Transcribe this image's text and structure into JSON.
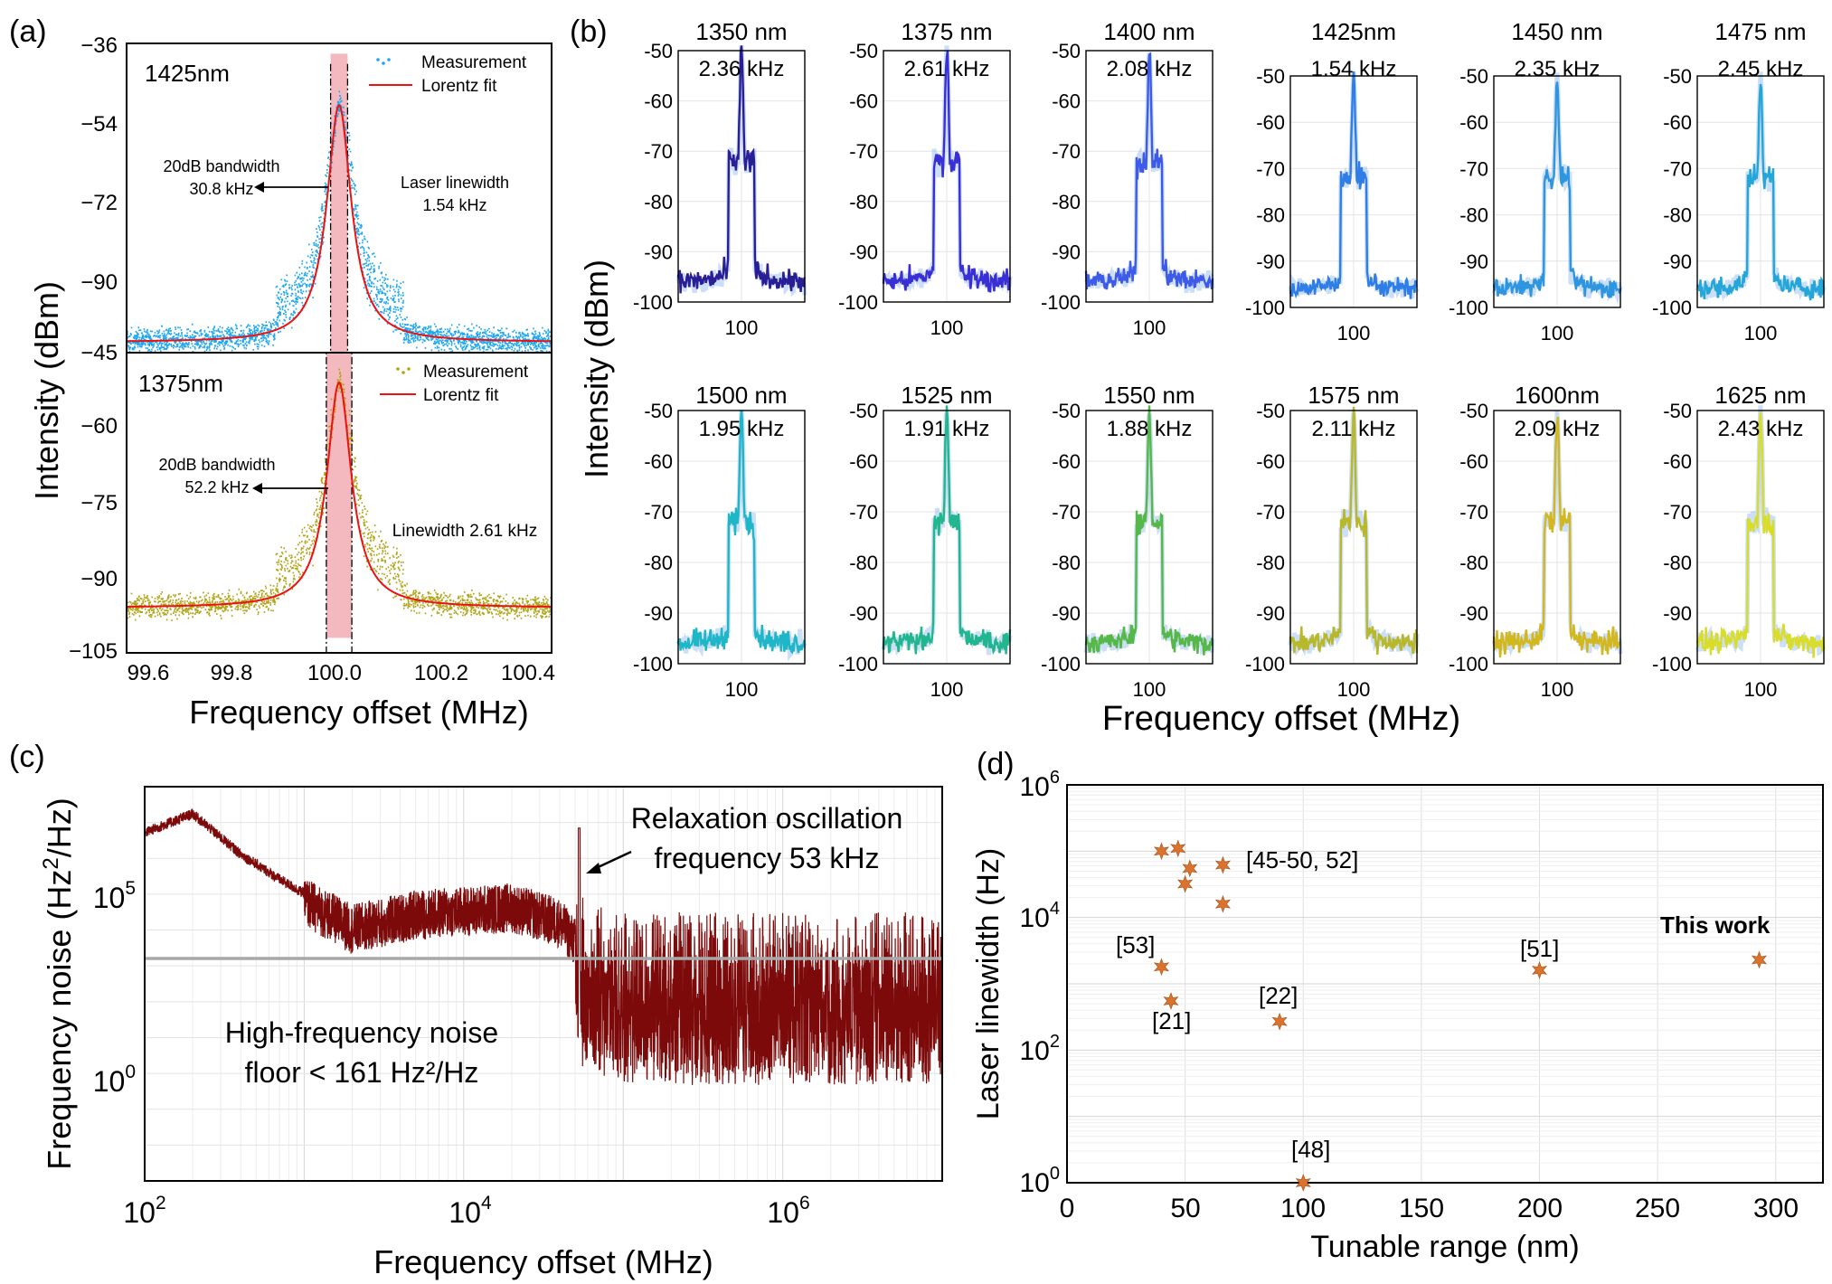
{
  "colors": {
    "meas_blue": "#1ea7f0",
    "meas_olive": "#b0a418",
    "fit_red": "#ee1111",
    "band_pink": "#f4b8bf",
    "noise_red": "#7d0a0a",
    "floor_gray": "#a8a8a8",
    "star_orange": "#d9732e",
    "spectra": [
      "#2a1e96",
      "#3a2fd6",
      "#3d5be8",
      "#2f7ee8",
      "#2e95e0",
      "#25a6d8",
      "#1fb6c8",
      "#22b68e",
      "#55b848",
      "#b8b82a",
      "#d2b81e",
      "#d9dd2a"
    ]
  },
  "panel_a": {
    "tag": "(a)",
    "ylabel": "Intensity (dBm)",
    "xlabel": "Frequency offset (MHz)",
    "xticks": [
      "99.6",
      "99.8",
      "100.0",
      "100.2",
      "100.4"
    ],
    "top": {
      "wavelength": "1425nm",
      "legend_meas": "Measurement",
      "legend_fit": "Lorentz fit",
      "bw_label1": "20dB bandwidth",
      "bw_label2": "30.8 kHz",
      "lw_label1": "Laser linewidth",
      "lw_label2": "1.54 kHz",
      "yticks": [
        "−36",
        "−54",
        "−72",
        "−90"
      ]
    },
    "bottom": {
      "wavelength": "1375nm",
      "legend_meas": "Measurement",
      "legend_fit": "Lorentz fit",
      "bw_label1": "20dB bandwidth",
      "bw_label2": "52.2 kHz",
      "lw_label": "Linewidth 2.61 kHz",
      "yticks": [
        "−45",
        "−60",
        "−75",
        "−90",
        "−105"
      ]
    }
  },
  "panel_b": {
    "tag": "(b)",
    "ylabel": "Intensity (dBm)",
    "xlabel": "Frequency offset (MHz)",
    "xtick": "100",
    "yticks": [
      "-50",
      "-60",
      "-70",
      "-80",
      "-90",
      "-100"
    ],
    "items": [
      {
        "wl": "1350 nm",
        "lw": "2.36 kHz"
      },
      {
        "wl": "1375 nm",
        "lw": "2.61 kHz"
      },
      {
        "wl": "1400 nm",
        "lw": "2.08 kHz"
      },
      {
        "wl": "1425nm",
        "lw": "1.54 kHz"
      },
      {
        "wl": "1450 nm",
        "lw": "2.35 kHz"
      },
      {
        "wl": "1475 nm",
        "lw": "2.45 kHz"
      },
      {
        "wl": "1500 nm",
        "lw": "1.95 kHz"
      },
      {
        "wl": "1525 nm",
        "lw": "1.91 kHz"
      },
      {
        "wl": "1550 nm",
        "lw": "1.88 kHz"
      },
      {
        "wl": "1575 nm",
        "lw": "2.11 kHz"
      },
      {
        "wl": "1600nm",
        "lw": "2.09 kHz"
      },
      {
        "wl": "1625 nm",
        "lw": "2.43 kHz"
      }
    ]
  },
  "panel_c": {
    "tag": "(c)",
    "ylabel_pre": "Frequency noise (Hz",
    "ylabel_sup": "2",
    "ylabel_post": "/Hz)",
    "xlabel": "Frequency offset (MHz)",
    "xticks": [
      {
        "b": "10",
        "e": "2"
      },
      {
        "b": "10",
        "e": "4"
      },
      {
        "b": "10",
        "e": "6"
      }
    ],
    "yticks": [
      {
        "b": "10",
        "e": "5"
      },
      {
        "b": "10",
        "e": "0"
      }
    ],
    "annot1": "Relaxation oscillation",
    "annot2": "frequency 53 kHz",
    "floor1": "High-frequency noise",
    "floor2": "floor  < 161 Hz²/Hz"
  },
  "panel_d": {
    "tag": "(d)",
    "ylabel": "Laser linewidth (Hz)",
    "xlabel": "Tunable range (nm)",
    "xticks": [
      "0",
      "50",
      "100",
      "150",
      "200",
      "250",
      "300"
    ],
    "yticks": [
      {
        "b": "10",
        "e": "0"
      },
      {
        "b": "10",
        "e": "2"
      },
      {
        "b": "10",
        "e": "4"
      },
      {
        "b": "10",
        "e": "6"
      }
    ],
    "labels": [
      "[45-50, 52]",
      "[53]",
      "[21]",
      "[22]",
      "[51]",
      "This work",
      "[48]"
    ]
  },
  "chart_data": [
    {
      "type": "line",
      "panel": "a-top",
      "series": [
        {
          "name": "Measurement"
        },
        {
          "name": "Lorentz fit"
        }
      ],
      "center_mhz": 100.0,
      "peak_dbm": -48,
      "floor_dbm": -94,
      "xlim": [
        99.5,
        100.5
      ],
      "ylim": [
        -96,
        -36
      ],
      "bandwidth_20db_khz": 30.8,
      "linewidth_khz": 1.54
    },
    {
      "type": "line",
      "panel": "a-bottom",
      "series": [
        {
          "name": "Measurement"
        },
        {
          "name": "Lorentz fit"
        }
      ],
      "center_mhz": 100.0,
      "peak_dbm": -51,
      "floor_dbm": -96,
      "xlim": [
        99.5,
        100.5
      ],
      "ylim": [
        -105,
        -45
      ],
      "bandwidth_20db_khz": 52.2,
      "linewidth_khz": 2.61
    },
    {
      "type": "line",
      "panel": "b",
      "x_center_mhz": 100,
      "ylim": [
        -100,
        -50
      ],
      "peak_dbm": -50,
      "floor_dbm": -96,
      "wavelengths_nm": [
        1350,
        1375,
        1400,
        1425,
        1450,
        1475,
        1500,
        1525,
        1550,
        1575,
        1600,
        1625
      ],
      "linewidths_khz": [
        2.36,
        2.61,
        2.08,
        1.54,
        2.35,
        2.45,
        1.95,
        1.91,
        1.88,
        2.11,
        2.09,
        2.43
      ]
    },
    {
      "type": "line",
      "panel": "c",
      "xscale": "log",
      "yscale": "log",
      "xlim": [
        100,
        10000000
      ],
      "ylim": [
        0.0001,
        10000000
      ],
      "envelope_x": [
        100,
        200,
        400,
        700,
        2000,
        5000,
        20000,
        40000,
        60000,
        100000,
        1000000,
        10000000
      ],
      "envelope_y": [
        600000,
        2000000,
        150000,
        30000,
        2000,
        5000,
        8000,
        3000,
        300,
        150,
        150,
        150
      ],
      "relaxation_peak_hz": 53000,
      "relaxation_peak_value": 700000,
      "floor_value": 161
    },
    {
      "type": "scatter",
      "panel": "d",
      "xlim": [
        0,
        320
      ],
      "ylim": [
        1,
        1000000
      ],
      "yscale": "log",
      "points": [
        {
          "x": 40,
          "y": 100000
        },
        {
          "x": 47,
          "y": 110000
        },
        {
          "x": 52,
          "y": 55000
        },
        {
          "x": 50,
          "y": 32000
        },
        {
          "x": 66,
          "y": 62000
        },
        {
          "x": 66,
          "y": 16000
        },
        {
          "x": 40,
          "y": 1800
        },
        {
          "x": 44,
          "y": 550
        },
        {
          "x": 90,
          "y": 270
        },
        {
          "x": 200,
          "y": 1600
        },
        {
          "x": 293,
          "y": 2300
        },
        {
          "x": 100,
          "y": 1
        }
      ]
    }
  ]
}
